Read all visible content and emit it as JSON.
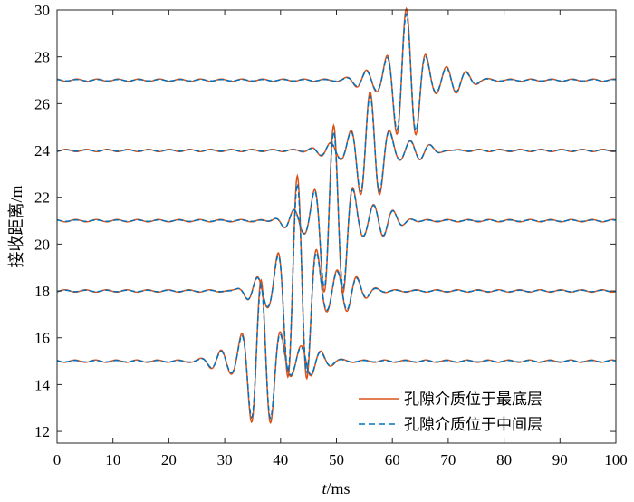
{
  "chart_data": {
    "type": "line",
    "xlabel_italic": "t",
    "xlabel_unit": "/ms",
    "ylabel": "接收距离/m",
    "xlim": [
      0,
      100
    ],
    "ylim": [
      11.5,
      30
    ],
    "x_ticks": [
      0,
      10,
      20,
      30,
      40,
      50,
      60,
      70,
      80,
      90,
      100
    ],
    "y_ticks": [
      12,
      14,
      16,
      18,
      20,
      22,
      24,
      26,
      28,
      30
    ],
    "grid": false,
    "legend_position": "bottom-right",
    "series": [
      {
        "name": "孔隙介质位于最底层",
        "color": "#D95319",
        "style": "solid"
      },
      {
        "name": "孔隙介质位于中间层",
        "color": "#0072BD",
        "style": "dashed"
      }
    ],
    "traces": [
      {
        "offset": 15,
        "arrival_ms": 36.5,
        "peak_up": 18.0,
        "peak_down": 11.6
      },
      {
        "offset": 18,
        "arrival_ms": 43.0,
        "peak_up": 20.6,
        "peak_down": 13.1
      },
      {
        "offset": 21,
        "arrival_ms": 49.5,
        "peak_up": 23.2,
        "peak_down": 16.9
      },
      {
        "offset": 24,
        "arrival_ms": 56.0,
        "peak_up": 26.3,
        "peak_down": 21.5
      },
      {
        "offset": 27,
        "arrival_ms": 62.5,
        "peak_up": 29.2,
        "peak_down": 24.0
      }
    ]
  }
}
